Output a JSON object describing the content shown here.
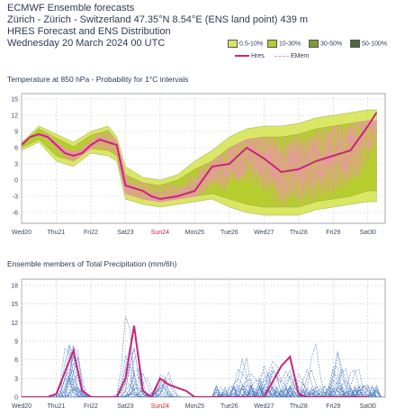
{
  "header": {
    "line1": "ECMWF Ensemble forecasts",
    "line2": "Zürich - Zürich - Switzerland 47.35°N 8.54°E (ENS land point) 439 m",
    "line3": "HRES Forecast and ENS Distribution",
    "line4": "Wednesday 20 March 2024 00 UTC"
  },
  "legend": {
    "items": [
      {
        "label": "0.5-10%",
        "color": "#d7e65c"
      },
      {
        "label": "10-30%",
        "color": "#b4cc2c"
      },
      {
        "label": "30-50%",
        "color": "#7e9a32"
      },
      {
        "label": "50-100%",
        "color": "#486b3a"
      }
    ],
    "hres_label": "Hres",
    "emem_label": "EMem",
    "hres_color": "#c8267c",
    "emem_color": "#f48cbd"
  },
  "chart_data": [
    {
      "type": "line",
      "title": "Temperature at 850 hPa - Probability for 1°C intervals",
      "x_labels": [
        "Wed20",
        "Thu21",
        "Fri22",
        "Sat23",
        "Sun24",
        "Mon25",
        "Tue26",
        "Wed27",
        "Thu28",
        "Fri29",
        "Sat30"
      ],
      "highlight_label": "Sun24",
      "highlight_color": "#d0202a",
      "yticks": [
        -6,
        -3,
        0,
        3,
        6,
        9,
        12,
        15
      ],
      "ylim": [
        -8,
        16
      ],
      "xlim": [
        0,
        10.5
      ],
      "grid": true,
      "hres": {
        "name": "Hres",
        "x": [
          0,
          0.25,
          0.5,
          0.75,
          1,
          1.25,
          1.5,
          1.75,
          2,
          2.25,
          2.5,
          2.75,
          3,
          3.25,
          3.5,
          3.75,
          4,
          4.5,
          5,
          5.5,
          6,
          6.5,
          7,
          7.5,
          8,
          8.5,
          9,
          9.5,
          10,
          10.25
        ],
        "values": [
          6.5,
          8.0,
          8.5,
          8.0,
          6.5,
          5.0,
          4.5,
          5.0,
          6.5,
          7.5,
          7.0,
          6.5,
          -1.0,
          -1.5,
          -2.0,
          -3.0,
          -3.5,
          -3.0,
          -2.0,
          2.5,
          3.0,
          6.0,
          4.0,
          1.5,
          2.0,
          3.5,
          4.5,
          5.5,
          10.0,
          12.5
        ]
      },
      "band_outer": {
        "x": [
          0,
          0.5,
          1,
          1.5,
          2,
          2.5,
          2.75,
          3,
          3.5,
          4,
          4.5,
          5,
          5.5,
          6,
          6.5,
          7,
          7.5,
          8,
          8.5,
          9,
          9.5,
          10,
          10.25
        ],
        "upper": [
          7.0,
          10.0,
          8.5,
          7.0,
          9.0,
          10.0,
          8.0,
          2.5,
          0.5,
          0.0,
          1.0,
          3.5,
          5.5,
          8.0,
          9.5,
          10.0,
          10.0,
          10.5,
          11.5,
          12.0,
          12.5,
          13.0,
          13.0
        ],
        "lower": [
          5.5,
          7.0,
          3.5,
          2.5,
          5.0,
          4.5,
          3.5,
          -3.5,
          -4.5,
          -5.0,
          -4.5,
          -4.0,
          -3.5,
          -5.0,
          -6.0,
          -6.5,
          -6.5,
          -6.5,
          -5.5,
          -5.0,
          -4.5,
          -4.0,
          -4.0
        ]
      },
      "band_inner": {
        "x": [
          0,
          0.5,
          1,
          1.5,
          2,
          2.5,
          2.75,
          3,
          3.5,
          4,
          4.5,
          5,
          5.5,
          6,
          6.5,
          7,
          7.5,
          8,
          8.5,
          9,
          9.5,
          10,
          10.25
        ],
        "upper": [
          6.8,
          9.5,
          7.8,
          6.2,
          8.3,
          9.2,
          7.2,
          1.0,
          -0.5,
          -1.0,
          0.0,
          2.0,
          3.5,
          6.0,
          7.5,
          8.0,
          8.0,
          8.5,
          9.5,
          10.0,
          10.5,
          11.0,
          11.0
        ],
        "lower": [
          6.0,
          7.5,
          4.5,
          3.5,
          5.8,
          5.5,
          4.5,
          -2.5,
          -3.5,
          -4.0,
          -3.5,
          -3.0,
          -2.5,
          -3.5,
          -4.5,
          -5.0,
          -5.0,
          -5.0,
          -4.0,
          -3.5,
          -3.0,
          -2.0,
          -2.0
        ]
      }
    },
    {
      "type": "line",
      "title": "Ensemble members of Total Precipitation (mm/6h)",
      "x_labels": [
        "Wed20",
        "Thu21",
        "Fri22",
        "Sat23",
        "Sun24",
        "Mon25",
        "Tue26",
        "Wed27",
        "Thu28",
        "Fri29",
        "Sat30"
      ],
      "highlight_label": "Sun24",
      "highlight_color": "#d0202a",
      "yticks": [
        0,
        3,
        6,
        9,
        12,
        15,
        18
      ],
      "ylim": [
        0,
        19
      ],
      "xlim": [
        0,
        10.5
      ],
      "grid": true,
      "member_color": "#4a78c2",
      "hres": {
        "name": "Hres",
        "x": [
          0,
          0.5,
          0.75,
          1,
          1.25,
          1.5,
          1.75,
          2,
          2.5,
          2.75,
          3,
          3.25,
          3.5,
          3.75,
          4,
          4.25,
          4.5,
          4.75,
          5,
          6,
          7,
          7.25,
          7.5,
          7.75,
          8,
          8.25,
          8.5,
          9,
          10
        ],
        "values": [
          0,
          0,
          0,
          0.5,
          4.0,
          7.5,
          1.0,
          0,
          0,
          0,
          3.0,
          11.5,
          1.0,
          0,
          3.0,
          2.0,
          1.5,
          1.0,
          0,
          0,
          0,
          2.5,
          5.0,
          6.5,
          0.5,
          0,
          0,
          0,
          0
        ]
      }
    }
  ]
}
